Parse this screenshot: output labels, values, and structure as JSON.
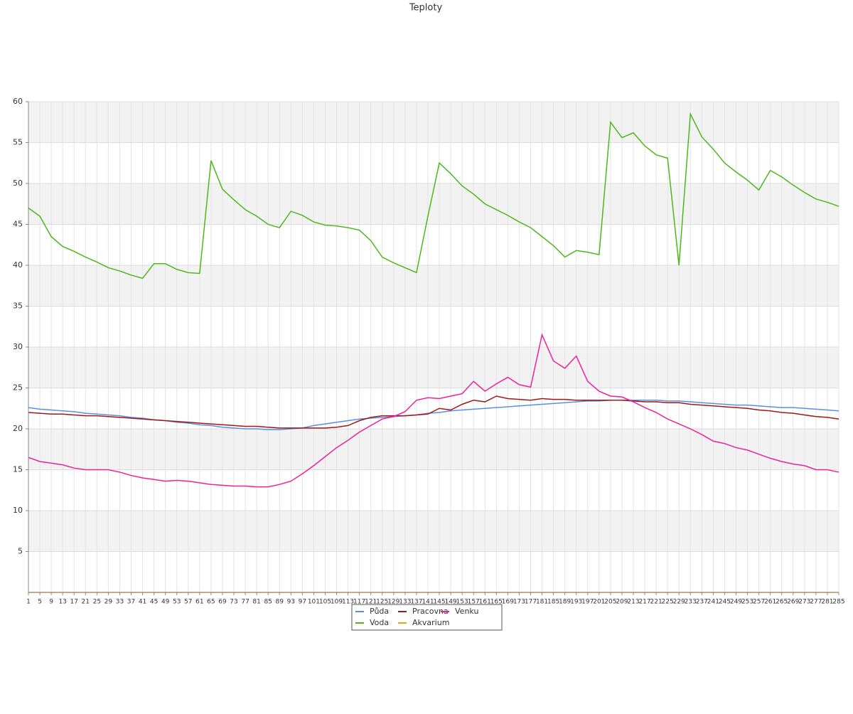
{
  "chart_data": {
    "type": "line",
    "title": "Teploty",
    "x": [
      1,
      5,
      9,
      13,
      17,
      21,
      25,
      29,
      33,
      37,
      41,
      45,
      49,
      53,
      57,
      61,
      65,
      69,
      73,
      77,
      81,
      85,
      89,
      93,
      97,
      101,
      105,
      109,
      113,
      117,
      121,
      125,
      129,
      133,
      137,
      141,
      145,
      149,
      153,
      157,
      161,
      165,
      169,
      173,
      177,
      181,
      185,
      189,
      193,
      197,
      201,
      205,
      209,
      213,
      217,
      221,
      225,
      229,
      233,
      237,
      241,
      245,
      249,
      253,
      257,
      261,
      265,
      269,
      273,
      277,
      281,
      285
    ],
    "xlim": [
      1,
      285
    ],
    "ylim": [
      0,
      60
    ],
    "yticks": [
      5,
      10,
      15,
      20,
      25,
      30,
      35,
      40,
      45,
      50,
      55,
      60
    ],
    "grid": true,
    "series": [
      {
        "name": "Půda",
        "color": "#5b8fe0",
        "values": [
          22.6,
          22.4,
          22.3,
          22.2,
          22.1,
          21.9,
          21.8,
          21.7,
          21.6,
          21.4,
          21.3,
          21.1,
          21.0,
          20.8,
          20.7,
          20.5,
          20.4,
          20.2,
          20.1,
          20.0,
          20.0,
          19.9,
          19.9,
          20.0,
          20.1,
          20.4,
          20.6,
          20.8,
          21.0,
          21.2,
          21.3,
          21.4,
          21.5,
          21.6,
          21.7,
          21.9,
          22.0,
          22.2,
          22.3,
          22.4,
          22.5,
          22.6,
          22.7,
          22.8,
          22.9,
          23.0,
          23.1,
          23.2,
          23.3,
          23.4,
          23.4,
          23.5,
          23.5,
          23.5,
          23.5,
          23.5,
          23.4,
          23.4,
          23.3,
          23.2,
          23.1,
          23.0,
          22.9,
          22.9,
          22.8,
          22.7,
          22.6,
          22.6,
          22.5,
          22.4,
          22.3,
          22.2
        ]
      },
      {
        "name": "Voda",
        "color": "#4cb81a",
        "values": [
          47,
          46,
          43.5,
          42.3,
          41.7,
          41,
          40.4,
          39.7,
          39.3,
          38.8,
          38.4,
          40.2,
          40.2,
          39.5,
          39.1,
          39,
          52.8,
          49.3,
          48,
          46.8,
          46,
          45,
          44.6,
          46.6,
          46.1,
          45.3,
          44.9,
          44.8,
          44.6,
          44.3,
          43,
          41,
          40.3,
          39.7,
          39.1,
          46,
          52.5,
          51.2,
          49.7,
          48.7,
          47.5,
          46.8,
          46.1,
          45.3,
          44.6,
          43.5,
          42.4,
          41,
          41.8,
          41.6,
          41.3,
          57.5,
          55.6,
          56.2,
          54.6,
          53.5,
          53.1,
          40,
          58.5,
          55.7,
          54.2,
          52.5,
          51.4,
          50.4,
          49.2,
          51.6,
          50.8,
          49.8,
          48.9,
          48.1,
          47.7,
          47.2
        ]
      },
      {
        "name": "Pracovna",
        "color": "#a01818",
        "values": [
          22.0,
          21.9,
          21.8,
          21.8,
          21.7,
          21.6,
          21.6,
          21.5,
          21.4,
          21.3,
          21.2,
          21.1,
          21.0,
          20.9,
          20.8,
          20.7,
          20.6,
          20.5,
          20.4,
          20.3,
          20.3,
          20.2,
          20.1,
          20.1,
          20.1,
          20.1,
          20.1,
          20.2,
          20.4,
          21.0,
          21.4,
          21.6,
          21.6,
          21.6,
          21.7,
          21.8,
          22.5,
          22.3,
          23.0,
          23.5,
          23.3,
          24.0,
          23.7,
          23.6,
          23.5,
          23.7,
          23.6,
          23.6,
          23.5,
          23.5,
          23.5,
          23.5,
          23.5,
          23.4,
          23.3,
          23.3,
          23.2,
          23.2,
          23.0,
          22.9,
          22.8,
          22.7,
          22.6,
          22.5,
          22.3,
          22.2,
          22.0,
          21.9,
          21.7,
          21.5,
          21.4,
          21.2
        ]
      },
      {
        "name": "Akvarium",
        "color": "#e8a020",
        "values": [
          0,
          0,
          0,
          0,
          0,
          0,
          0,
          0,
          0,
          0,
          0,
          0,
          0,
          0,
          0,
          0,
          0,
          0,
          0,
          0,
          0,
          0,
          0,
          0,
          0,
          0,
          0,
          0,
          0,
          0,
          0,
          0,
          0,
          0,
          0,
          0,
          0,
          0,
          0,
          0,
          0,
          0,
          0,
          0,
          0,
          0,
          0,
          0,
          0,
          0,
          0,
          0,
          0,
          0,
          0,
          0,
          0,
          0,
          0,
          0,
          0,
          0,
          0,
          0,
          0,
          0,
          0,
          0,
          0,
          0,
          0,
          0
        ]
      },
      {
        "name": "Venku",
        "color": "#f0209a",
        "values": [
          16.5,
          16.0,
          15.8,
          15.6,
          15.2,
          15.0,
          15.0,
          15.0,
          14.7,
          14.3,
          14.0,
          13.8,
          13.6,
          13.7,
          13.6,
          13.4,
          13.2,
          13.1,
          13.0,
          13.0,
          12.9,
          12.9,
          13.2,
          13.6,
          14.5,
          15.5,
          16.6,
          17.7,
          18.6,
          19.6,
          20.4,
          21.2,
          21.5,
          22.1,
          23.5,
          23.8,
          23.7,
          24.0,
          24.3,
          25.8,
          24.6,
          25.5,
          26.3,
          25.4,
          25.1,
          31.5,
          28.3,
          27.4,
          28.9,
          25.8,
          24.6,
          24.0,
          23.9,
          23.3,
          22.6,
          22.0,
          21.2,
          20.6,
          20.0,
          19.3,
          18.5,
          18.2,
          17.7,
          17.4,
          16.9,
          16.4,
          16.0,
          15.7,
          15.5,
          15.0,
          15.0,
          14.7
        ]
      }
    ]
  }
}
